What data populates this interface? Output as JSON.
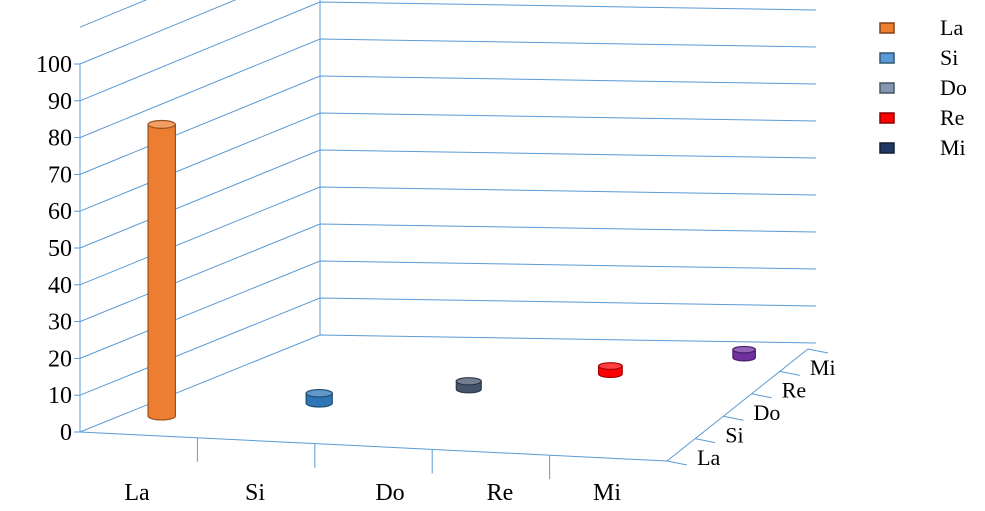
{
  "chart_data": {
    "type": "bar",
    "variant": "3d-cylinder",
    "title": "",
    "xlabel": "",
    "ylabel": "",
    "ylim": [
      0,
      100
    ],
    "y_ticks": [
      "0",
      "10",
      "20",
      "30",
      "40",
      "50",
      "60",
      "70",
      "80",
      "90",
      "100"
    ],
    "categories": [
      "La",
      "Si",
      "Do",
      "Re",
      "Mi"
    ],
    "depth_labels": [
      "La",
      "Si",
      "Do",
      "Re",
      "Mi"
    ],
    "grid": true,
    "legend_position": "top-right",
    "series": [
      {
        "name": "La",
        "color": "#ED7D31",
        "values": [
          88,
          0,
          0,
          0,
          0
        ]
      },
      {
        "name": "Si",
        "color": "#2E75B6",
        "values": [
          0,
          3,
          0,
          0,
          0
        ]
      },
      {
        "name": "Do",
        "color": "#44546A",
        "values": [
          0,
          0,
          1,
          0,
          0
        ]
      },
      {
        "name": "Re",
        "color": "#FF0000",
        "values": [
          0,
          0,
          0,
          1,
          0
        ]
      },
      {
        "name": "Mi",
        "color": "#7030A0",
        "values": [
          0,
          0,
          0,
          0,
          1
        ]
      }
    ],
    "legend_swatch_colors": [
      "#ED7D31",
      "#5B9BD5",
      "#8497B0",
      "#FF0000",
      "#203864"
    ],
    "gridline_color": "#5B9BD5"
  }
}
